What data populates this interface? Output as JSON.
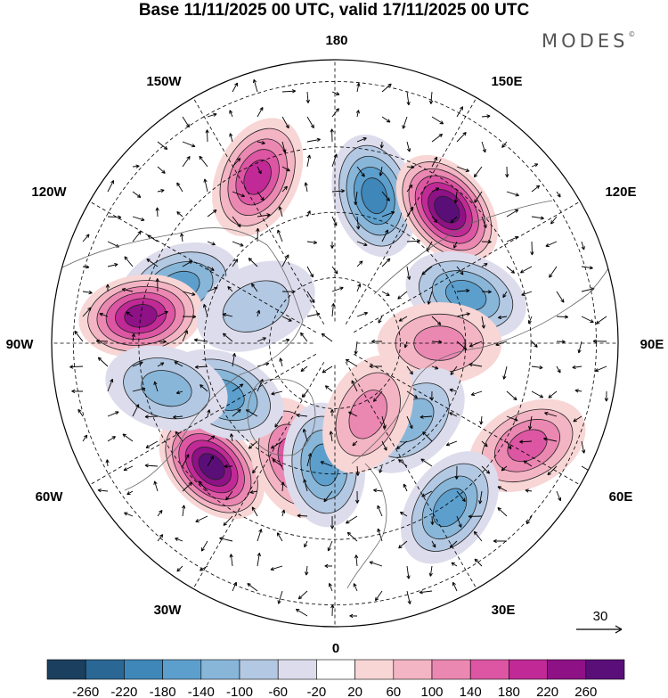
{
  "title": "Base 11/11/2025 00 UTC, valid 17/11/2025 00 UTC",
  "logo": "MODES",
  "logo_mark": "©",
  "longitudes": {
    "top": "180",
    "bottom": "0",
    "left": "90W",
    "right": "90E",
    "upper_left": "150W",
    "upper_right": "150E",
    "mid_upper_left": "120W",
    "mid_upper_right": "120E",
    "mid_lower_left": "60W",
    "mid_lower_right": "60E",
    "lower_left": "30W",
    "lower_right": "30E"
  },
  "vector_reference": "30",
  "colorbar": {
    "ticks": [
      "-260",
      "-220",
      "-180",
      "-140",
      "-100",
      "-60",
      "-20",
      "20",
      "60",
      "100",
      "140",
      "180",
      "220",
      "260"
    ],
    "colors": [
      "#1b3f5e",
      "#2a6794",
      "#3f86b9",
      "#5c9fcc",
      "#88b6d9",
      "#b3c8e2",
      "#dcdcec",
      "#ffffff",
      "#f8d6d6",
      "#f3b4c3",
      "#eb88b2",
      "#dd56a3",
      "#c12a96",
      "#8e1186",
      "#5a0f78"
    ]
  },
  "anomaly_centers": [
    {
      "lon": 165,
      "lat": 55,
      "value": -200
    },
    {
      "lon": -155,
      "lat": 48,
      "value": 200
    },
    {
      "lon": 140,
      "lat": 50,
      "value": 260
    },
    {
      "lon": -110,
      "lat": 52,
      "value": -140
    },
    {
      "lon": -98,
      "lat": 45,
      "value": 220
    },
    {
      "lon": 110,
      "lat": 58,
      "value": -160
    },
    {
      "lon": 90,
      "lat": 66,
      "value": 100
    },
    {
      "lon": 62,
      "lat": 40,
      "value": 140
    },
    {
      "lon": 45,
      "lat": 65,
      "value": -100
    },
    {
      "lon": 35,
      "lat": 44,
      "value": -140
    },
    {
      "lon": -45,
      "lat": 50,
      "value": 260
    },
    {
      "lon": -20,
      "lat": 62,
      "value": 150
    },
    {
      "lon": -5,
      "lat": 62,
      "value": -160
    },
    {
      "lon": -65,
      "lat": 62,
      "value": -160
    },
    {
      "lon": 25,
      "lat": 72,
      "value": 120
    },
    {
      "lon": -115,
      "lat": 70,
      "value": -60
    },
    {
      "lon": -75,
      "lat": 50,
      "value": -120
    }
  ]
}
